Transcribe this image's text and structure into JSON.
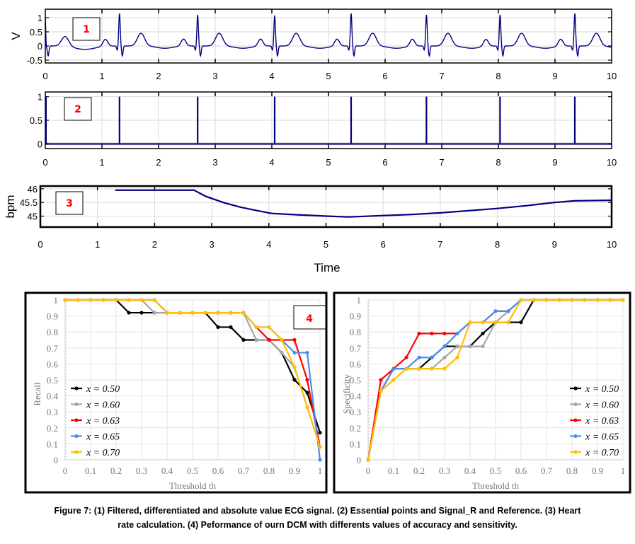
{
  "figure": {
    "caption_line1": "Figure 7: (1) Filtered, differentiated and absolute value ECG signal. (2) Essential points and Signal_R and Reference. (3) Heart",
    "caption_line2": "rate calculation. (4) Peformance of ourn DCM with differents values of accuracy and sensitivity."
  },
  "colors": {
    "signal": "#000080",
    "badge_text": "#ff0000",
    "grid": "#d9d9d9",
    "series_050": "#000000",
    "series_060": "#a6a6a6",
    "series_063": "#ff0000",
    "series_065": "#4a8df0",
    "series_070": "#ffc000"
  },
  "chart_data": [
    {
      "panel": "1",
      "type": "line",
      "title": "",
      "badge": "1",
      "xlabel": "",
      "ylabel": "V",
      "xlim": [
        0,
        10
      ],
      "ylim": [
        -0.6,
        1.3
      ],
      "xticks": [
        "0",
        "1",
        "2",
        "3",
        "4",
        "5",
        "6",
        "7",
        "8",
        "9",
        "10"
      ],
      "yticks": [
        "-0.5",
        "0",
        "0.5",
        "1"
      ],
      "ytick_values": [
        -0.5,
        0,
        0.5,
        1
      ],
      "grid": true,
      "r_peak_times": [
        1.31,
        2.69,
        4.05,
        5.4,
        6.73,
        8.03,
        9.35
      ],
      "r_peak_amplitudes": [
        1.15,
        1.1,
        1.08,
        1.15,
        1.1,
        1.1,
        1.15
      ],
      "p_wave_amplitude": 0.25,
      "t_wave_amplitude": 0.45,
      "s_wave_amplitude": -0.35
    },
    {
      "panel": "2",
      "type": "line",
      "title": "",
      "badge": "2",
      "xlabel": "",
      "ylabel": "",
      "xlim": [
        0,
        10
      ],
      "ylim": [
        -0.1,
        1.1
      ],
      "xticks": [
        "0",
        "1",
        "2",
        "3",
        "4",
        "5",
        "6",
        "7",
        "8",
        "9",
        "10"
      ],
      "yticks": [
        "0",
        "0.5",
        "1"
      ],
      "ytick_values": [
        0,
        0.5,
        1
      ],
      "grid": true,
      "pulse_times": [
        1.31,
        2.69,
        4.05,
        5.4,
        6.73,
        8.03,
        9.35
      ],
      "pulse_value": 1
    },
    {
      "panel": "3",
      "type": "line",
      "title": "",
      "badge": "3",
      "xlabel": "Time",
      "ylabel": "bpm",
      "xlim": [
        0,
        10
      ],
      "ylim": [
        44.6,
        46.1
      ],
      "xticks": [
        "0",
        "1",
        "2",
        "3",
        "4",
        "5",
        "6",
        "7",
        "8",
        "9",
        "10"
      ],
      "yticks": [
        "45",
        "45.5",
        "46"
      ],
      "ytick_values": [
        45,
        45.5,
        46
      ],
      "grid": true,
      "x": [
        1.31,
        2.69,
        2.9,
        3.2,
        3.5,
        3.8,
        4.05,
        4.5,
        5.0,
        5.4,
        6.0,
        6.5,
        7.0,
        7.5,
        8.0,
        8.5,
        9.0,
        9.35,
        10.0
      ],
      "y": [
        45.95,
        45.95,
        45.72,
        45.5,
        45.33,
        45.2,
        45.1,
        45.05,
        45.0,
        44.97,
        45.02,
        45.06,
        45.12,
        45.2,
        45.28,
        45.38,
        45.5,
        45.56,
        45.58
      ]
    },
    {
      "panel": "4a",
      "type": "line",
      "title": "",
      "badge": "4",
      "xlabel": "Threshold th",
      "ylabel": "Recall",
      "xlim": [
        0,
        1
      ],
      "ylim": [
        0,
        1
      ],
      "xticks": [
        "0",
        "0.1",
        "0.2",
        "0.3",
        "0.4",
        "0.5",
        "0.6",
        "0.7",
        "0.8",
        "0.9",
        "1"
      ],
      "yticks": [
        "0",
        "0.1",
        "0.2",
        "0.3",
        "0.4",
        "0.5",
        "0.6",
        "0.7",
        "0.8",
        "0.9",
        "1"
      ],
      "grid": true,
      "legend_position": "bottom-left",
      "x": [
        0,
        0.05,
        0.1,
        0.15,
        0.2,
        0.25,
        0.3,
        0.35,
        0.4,
        0.45,
        0.5,
        0.55,
        0.6,
        0.65,
        0.7,
        0.75,
        0.8,
        0.85,
        0.9,
        0.95,
        1.0
      ],
      "series": [
        {
          "name": "x = 0.50",
          "color_key": "series_050",
          "values": [
            1,
            1,
            1,
            1,
            1,
            0.92,
            0.92,
            0.92,
            0.92,
            0.92,
            0.92,
            0.92,
            0.83,
            0.83,
            0.75,
            0.75,
            0.75,
            0.67,
            0.5,
            0.42,
            0.17
          ]
        },
        {
          "name": "x = 0.60",
          "color_key": "series_060",
          "values": [
            1,
            1,
            1,
            1,
            1,
            1,
            1,
            0.92,
            0.92,
            0.92,
            0.92,
            0.92,
            0.92,
            0.92,
            0.92,
            0.75,
            0.75,
            0.67,
            0.58,
            0.33,
            0.08
          ]
        },
        {
          "name": "x = 0.63",
          "color_key": "series_063",
          "values": [
            1,
            1,
            1,
            1,
            1,
            1,
            1,
            1,
            0.92,
            0.92,
            0.92,
            0.92,
            0.92,
            0.92,
            0.92,
            0.83,
            0.75,
            0.75,
            0.75,
            0.5,
            0.08
          ]
        },
        {
          "name": "x = 0.65",
          "color_key": "series_065",
          "values": [
            1,
            1,
            1,
            1,
            1,
            1,
            1,
            1,
            0.92,
            0.92,
            0.92,
            0.92,
            0.92,
            0.92,
            0.92,
            0.83,
            0.83,
            0.75,
            0.67,
            0.67,
            0
          ]
        },
        {
          "name": "x = 0.70",
          "color_key": "series_070",
          "values": [
            1,
            1,
            1,
            1,
            1,
            1,
            1,
            1,
            0.92,
            0.92,
            0.92,
            0.92,
            0.92,
            0.92,
            0.92,
            0.83,
            0.83,
            0.75,
            0.58,
            0.33,
            0.08
          ]
        }
      ]
    },
    {
      "panel": "4b",
      "type": "line",
      "title": "",
      "xlabel": "Threshold th",
      "ylabel": "Specificity",
      "xlim": [
        0,
        1
      ],
      "ylim": [
        0,
        1
      ],
      "xticks": [
        "0",
        "0.1",
        "0.2",
        "0.3",
        "0.4",
        "0.5",
        "0.6",
        "0.7",
        "0.8",
        "0.9",
        "1"
      ],
      "yticks": [
        "0",
        "0.1",
        "0.2",
        "0.3",
        "0.4",
        "0.5",
        "0.6",
        "0.7",
        "0.8",
        "0.9",
        "1"
      ],
      "grid": true,
      "legend_position": "bottom-right",
      "x": [
        0,
        0.05,
        0.1,
        0.15,
        0.2,
        0.25,
        0.3,
        0.35,
        0.4,
        0.45,
        0.5,
        0.55,
        0.6,
        0.65,
        0.7,
        0.75,
        0.8,
        0.85,
        0.9,
        0.95,
        1.0
      ],
      "series": [
        {
          "name": "x = 0.50",
          "color_key": "series_050",
          "values": [
            0,
            0.43,
            0.57,
            0.57,
            0.57,
            0.64,
            0.71,
            0.71,
            0.71,
            0.79,
            0.86,
            0.86,
            0.86,
            1,
            1,
            1,
            1,
            1,
            1,
            1,
            1
          ]
        },
        {
          "name": "x = 0.60",
          "color_key": "series_060",
          "values": [
            0,
            0.43,
            0.57,
            0.57,
            0.57,
            0.57,
            0.64,
            0.71,
            0.71,
            0.71,
            0.86,
            0.93,
            1,
            1,
            1,
            1,
            1,
            1,
            1,
            1,
            1
          ]
        },
        {
          "name": "x = 0.63",
          "color_key": "series_063",
          "values": [
            0,
            0.5,
            0.57,
            0.64,
            0.79,
            0.79,
            0.79,
            0.79,
            0.86,
            0.86,
            0.93,
            0.93,
            1,
            1,
            1,
            1,
            1,
            1,
            1,
            1,
            1
          ]
        },
        {
          "name": "x = 0.65",
          "color_key": "series_065",
          "values": [
            0,
            0.43,
            0.57,
            0.57,
            0.64,
            0.64,
            0.71,
            0.79,
            0.86,
            0.86,
            0.93,
            0.93,
            1,
            1,
            1,
            1,
            1,
            1,
            1,
            1,
            1
          ]
        },
        {
          "name": "x = 0.70",
          "color_key": "series_070",
          "values": [
            0,
            0.43,
            0.5,
            0.57,
            0.57,
            0.57,
            0.57,
            0.64,
            0.86,
            0.86,
            0.86,
            0.86,
            1,
            1,
            1,
            1,
            1,
            1,
            1,
            1,
            1
          ]
        }
      ]
    }
  ]
}
